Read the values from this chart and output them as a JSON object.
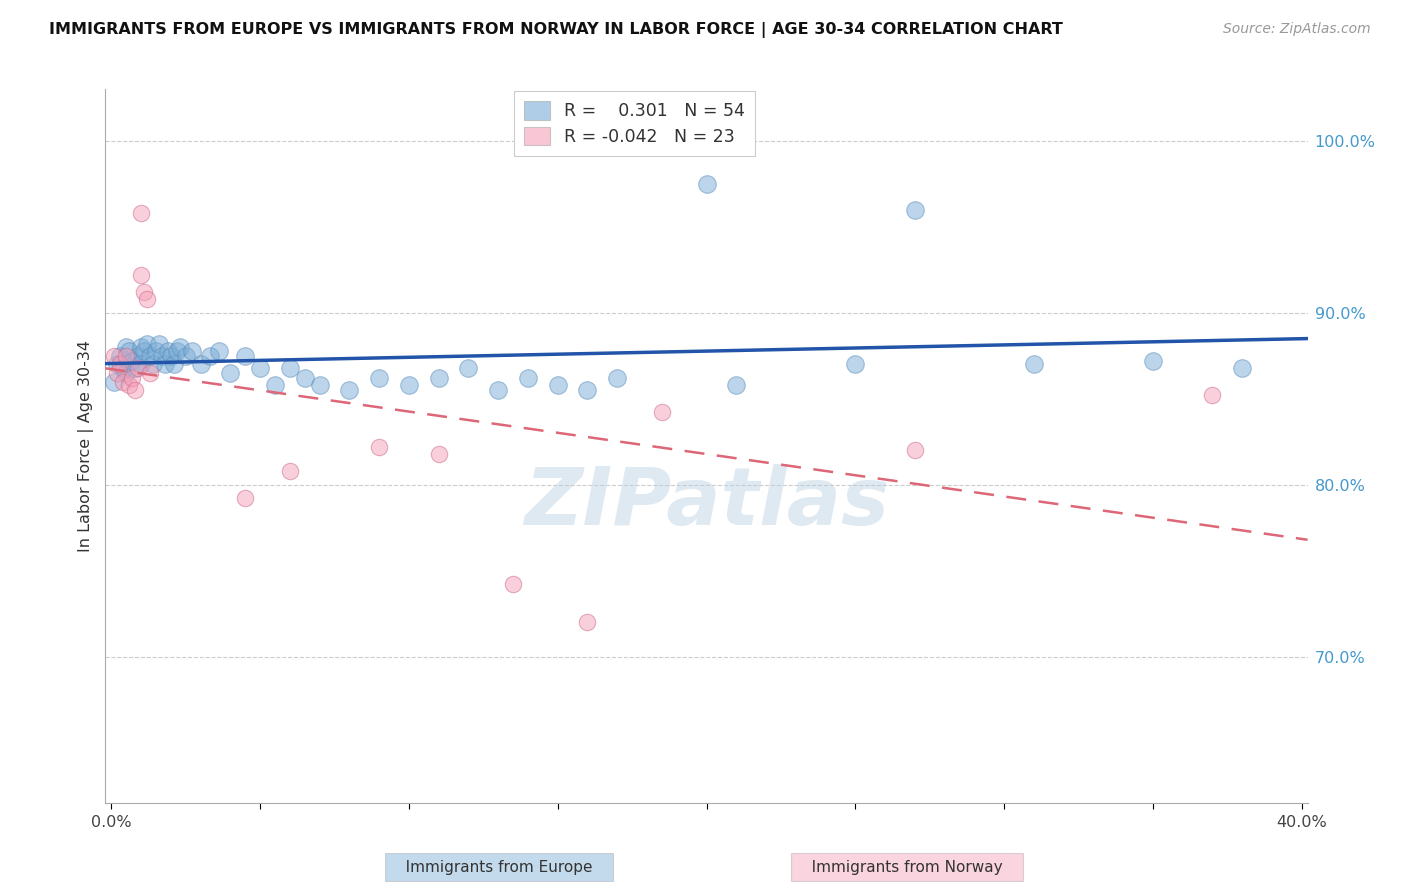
{
  "title": "IMMIGRANTS FROM EUROPE VS IMMIGRANTS FROM NORWAY IN LABOR FORCE | AGE 30-34 CORRELATION CHART",
  "source": "Source: ZipAtlas.com",
  "ylabel": "In Labor Force | Age 30-34",
  "xlim": [
    -0.002,
    0.402
  ],
  "ylim": [
    0.615,
    1.03
  ],
  "xticks": [
    0.0,
    0.05,
    0.1,
    0.15,
    0.2,
    0.25,
    0.3,
    0.35,
    0.4
  ],
  "yticks_right": [
    0.7,
    0.8,
    0.9,
    1.0
  ],
  "ytick_labels_right": [
    "70.0%",
    "80.0%",
    "90.0%",
    "100.0%"
  ],
  "xtick_labels": [
    "0.0%",
    "",
    "",
    "",
    "",
    "",
    "",
    "",
    "40.0%"
  ],
  "europe_R": 0.301,
  "europe_N": 54,
  "norway_R": -0.042,
  "norway_N": 23,
  "europe_color": "#7aadd6",
  "europe_edge_color": "#5588bb",
  "norway_color": "#f4a0b8",
  "norway_edge_color": "#cc6688",
  "europe_line_color": "#2255aa",
  "norway_line_color": "#dd6677",
  "watermark": "ZIPatlas",
  "watermark_color": "#b8cfe0",
  "background_color": "#ffffff",
  "grid_color": "#cccccc",
  "legend_R_color_europe": "#2255aa",
  "legend_R_color_norway": "#dd6677",
  "europe_x": [
    0.001,
    0.002,
    0.003,
    0.004,
    0.005,
    0.005,
    0.006,
    0.007,
    0.008,
    0.009,
    0.01,
    0.01,
    0.011,
    0.012,
    0.013,
    0.014,
    0.015,
    0.016,
    0.017,
    0.018,
    0.019,
    0.02,
    0.021,
    0.022,
    0.023,
    0.025,
    0.027,
    0.03,
    0.033,
    0.036,
    0.04,
    0.045,
    0.05,
    0.055,
    0.06,
    0.065,
    0.07,
    0.08,
    0.09,
    0.1,
    0.11,
    0.12,
    0.13,
    0.14,
    0.15,
    0.16,
    0.17,
    0.2,
    0.21,
    0.25,
    0.27,
    0.31,
    0.35,
    0.38
  ],
  "europe_y": [
    0.86,
    0.87,
    0.875,
    0.868,
    0.88,
    0.865,
    0.878,
    0.872,
    0.868,
    0.875,
    0.88,
    0.87,
    0.878,
    0.882,
    0.875,
    0.87,
    0.878,
    0.882,
    0.875,
    0.87,
    0.878,
    0.875,
    0.87,
    0.878,
    0.88,
    0.875,
    0.878,
    0.87,
    0.875,
    0.878,
    0.865,
    0.875,
    0.868,
    0.858,
    0.868,
    0.862,
    0.858,
    0.855,
    0.862,
    0.858,
    0.862,
    0.868,
    0.855,
    0.862,
    0.858,
    0.855,
    0.862,
    0.975,
    0.858,
    0.87,
    0.96,
    0.87,
    0.872,
    0.868
  ],
  "norway_x": [
    0.001,
    0.002,
    0.003,
    0.004,
    0.005,
    0.006,
    0.007,
    0.008,
    0.009,
    0.01,
    0.01,
    0.011,
    0.012,
    0.013,
    0.045,
    0.06,
    0.09,
    0.11,
    0.135,
    0.16,
    0.185,
    0.27,
    0.37
  ],
  "norway_y": [
    0.875,
    0.865,
    0.87,
    0.86,
    0.875,
    0.858,
    0.862,
    0.855,
    0.868,
    0.958,
    0.922,
    0.912,
    0.908,
    0.865,
    0.792,
    0.808,
    0.822,
    0.818,
    0.742,
    0.72,
    0.842,
    0.82,
    0.852
  ]
}
